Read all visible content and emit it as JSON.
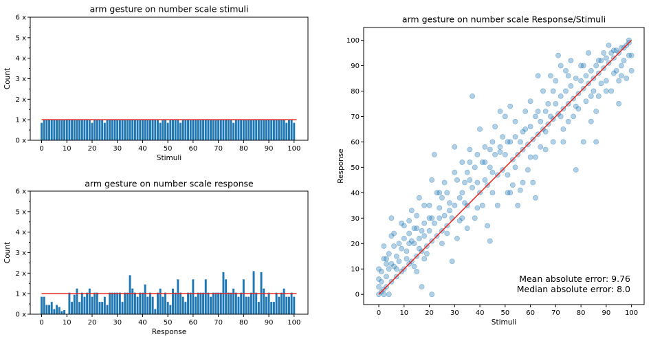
{
  "colors": {
    "bar": "#1f77b4",
    "point": "#1f77b4",
    "reference": "#e8251f"
  },
  "chart_data": [
    {
      "type": "bar",
      "title": "arm gesture on number scale stimuli",
      "xlabel": "Stimuli",
      "ylabel": "Count",
      "xlim": [
        -4.5,
        105.5
      ],
      "ylim": [
        0,
        6
      ],
      "xticks": [
        "0",
        "10",
        "20",
        "30",
        "40",
        "50",
        "60",
        "70",
        "80",
        "90",
        "100"
      ],
      "yticks": [
        "0 x",
        "1 x",
        "2 x",
        "3 x",
        "4 x",
        "5 x",
        "6 x"
      ],
      "reference_line": {
        "y": 1,
        "x": [
          0,
          101
        ]
      },
      "x": [
        0,
        1,
        2,
        3,
        4,
        5,
        6,
        7,
        8,
        9,
        10,
        11,
        12,
        13,
        14,
        15,
        16,
        17,
        18,
        19,
        20,
        21,
        22,
        23,
        24,
        25,
        26,
        27,
        28,
        29,
        30,
        31,
        32,
        33,
        34,
        35,
        36,
        37,
        38,
        39,
        40,
        41,
        42,
        43,
        44,
        45,
        46,
        47,
        48,
        49,
        50,
        51,
        52,
        53,
        54,
        55,
        56,
        57,
        58,
        59,
        60,
        61,
        62,
        63,
        64,
        65,
        66,
        67,
        68,
        69,
        70,
        71,
        72,
        73,
        74,
        75,
        76,
        77,
        78,
        79,
        80,
        81,
        82,
        83,
        84,
        85,
        86,
        87,
        88,
        89,
        90,
        91,
        92,
        93,
        94,
        95,
        96,
        97,
        98,
        99,
        100
      ],
      "values": [
        0.85,
        1,
        1,
        1,
        1,
        1,
        1,
        1,
        1,
        1,
        1,
        1,
        1,
        1,
        1,
        1,
        1,
        1,
        1,
        1,
        0.85,
        1,
        1,
        1,
        1,
        0.85,
        1,
        1,
        1,
        1,
        1,
        1,
        1,
        1,
        1,
        1,
        1,
        1,
        1,
        1,
        1,
        1,
        1,
        1,
        1,
        1,
        1,
        0.85,
        1,
        1,
        0.85,
        1,
        1,
        1,
        1,
        0.85,
        1,
        1,
        1,
        1,
        1,
        1,
        1,
        1,
        1,
        1,
        1,
        1,
        1,
        1,
        1,
        1,
        1,
        1,
        1,
        1,
        0.85,
        1,
        1,
        1,
        1,
        1,
        1,
        1,
        1,
        1,
        1,
        1,
        1,
        1,
        1,
        1,
        1,
        1,
        1,
        1,
        1,
        0.85,
        1,
        1,
        0.85
      ]
    },
    {
      "type": "bar",
      "title": "arm gesture on number scale response",
      "xlabel": "Response",
      "ylabel": "Count",
      "xlim": [
        -4.5,
        105.5
      ],
      "ylim": [
        0,
        6
      ],
      "xticks": [
        "0",
        "10",
        "20",
        "30",
        "40",
        "50",
        "60",
        "70",
        "80",
        "90",
        "100"
      ],
      "yticks": [
        "0 x",
        "1 x",
        "2 x",
        "3 x",
        "4 x",
        "5 x",
        "6 x"
      ],
      "reference_line": {
        "y": 1,
        "x": [
          0,
          101
        ]
      },
      "x": [
        0,
        1,
        2,
        3,
        4,
        5,
        6,
        7,
        8,
        9,
        10,
        11,
        12,
        13,
        14,
        15,
        16,
        17,
        18,
        19,
        20,
        21,
        22,
        23,
        24,
        25,
        26,
        27,
        28,
        29,
        30,
        31,
        32,
        33,
        34,
        35,
        36,
        37,
        38,
        39,
        40,
        41,
        42,
        43,
        44,
        45,
        46,
        47,
        48,
        49,
        50,
        51,
        52,
        53,
        54,
        55,
        56,
        57,
        58,
        59,
        60,
        61,
        62,
        63,
        64,
        65,
        66,
        67,
        68,
        69,
        70,
        71,
        72,
        73,
        74,
        75,
        76,
        77,
        78,
        79,
        80,
        81,
        82,
        83,
        84,
        85,
        86,
        87,
        88,
        89,
        90,
        91,
        92,
        93,
        94,
        95,
        96,
        97,
        98,
        99,
        100
      ],
      "values": [
        0.85,
        0.85,
        0.45,
        0.45,
        0.6,
        0.25,
        0.45,
        0.35,
        0.15,
        0.2,
        0,
        1.05,
        0.6,
        0.95,
        1.25,
        0.6,
        1.05,
        0.85,
        1.05,
        1.25,
        0.85,
        1.05,
        1.05,
        0.6,
        0.6,
        0.85,
        0.45,
        1.05,
        1.05,
        1.05,
        1.05,
        1.05,
        0.6,
        1.05,
        1.05,
        1.9,
        1.25,
        1.05,
        0.85,
        1.05,
        1.05,
        1.45,
        0.85,
        1.05,
        0.85,
        0.25,
        1.05,
        1.25,
        0.85,
        1.05,
        0.6,
        0.45,
        1.25,
        1.05,
        1.7,
        1.05,
        0.85,
        0.6,
        1.05,
        1.05,
        1.7,
        0.85,
        1.05,
        1.05,
        1.05,
        1.7,
        1.05,
        0.85,
        1.05,
        1.05,
        1.05,
        1.05,
        2.05,
        1.7,
        1.05,
        1.05,
        1.25,
        1.05,
        0.85,
        1.05,
        1.7,
        0.85,
        0.85,
        1.05,
        2.1,
        1.05,
        0.6,
        2.05,
        1.25,
        0.85,
        1.05,
        0.6,
        0.6,
        1.05,
        0.85,
        1.05,
        1.25,
        0.85,
        0.85,
        1.05,
        0.85
      ]
    },
    {
      "type": "scatter",
      "title": "arm gesture on number scale Response/Stimuli",
      "xlabel": "Stimuli",
      "ylabel": "Response",
      "xlim": [
        -6,
        105
      ],
      "ylim": [
        -4,
        105
      ],
      "xticks": [
        "0",
        "10",
        "20",
        "30",
        "40",
        "50",
        "60",
        "70",
        "80",
        "90",
        "100"
      ],
      "yticks": [
        "0",
        "10",
        "20",
        "30",
        "40",
        "50",
        "60",
        "70",
        "80",
        "90",
        "100"
      ],
      "reference_line": {
        "x": [
          0,
          100
        ],
        "y": [
          0,
          100
        ]
      },
      "annotations": [
        "Mean absolute error: 9.76",
        "Median absolute error: 8.0"
      ],
      "points": [
        [
          0,
          0
        ],
        [
          0,
          3
        ],
        [
          0,
          6
        ],
        [
          0,
          10
        ],
        [
          1,
          1
        ],
        [
          1,
          5
        ],
        [
          1,
          9
        ],
        [
          2,
          2
        ],
        [
          2,
          0
        ],
        [
          2,
          14
        ],
        [
          2,
          19
        ],
        [
          3,
          3
        ],
        [
          3,
          7
        ],
        [
          3,
          12
        ],
        [
          4,
          0
        ],
        [
          4,
          10
        ],
        [
          4,
          16
        ],
        [
          5,
          5
        ],
        [
          5,
          12
        ],
        [
          5,
          23
        ],
        [
          5,
          30
        ],
        [
          6,
          11
        ],
        [
          6,
          19
        ],
        [
          7,
          7
        ],
        [
          7,
          15
        ],
        [
          8,
          20
        ],
        [
          8,
          13
        ],
        [
          9,
          9
        ],
        [
          9,
          18
        ],
        [
          10,
          10
        ],
        [
          10,
          22
        ],
        [
          10,
          27
        ],
        [
          11,
          17
        ],
        [
          11,
          14
        ],
        [
          12,
          12
        ],
        [
          12,
          24
        ],
        [
          12,
          29
        ],
        [
          13,
          13
        ],
        [
          13,
          21
        ],
        [
          13,
          33
        ],
        [
          14,
          20
        ],
        [
          14,
          26
        ],
        [
          15,
          15
        ],
        [
          15,
          9
        ],
        [
          15,
          31
        ],
        [
          16,
          22
        ],
        [
          16,
          18
        ],
        [
          16,
          38
        ],
        [
          17,
          17
        ],
        [
          17,
          25
        ],
        [
          17,
          3
        ],
        [
          18,
          23
        ],
        [
          18,
          28
        ],
        [
          18,
          35
        ],
        [
          19,
          19
        ],
        [
          19,
          16
        ],
        [
          20,
          25
        ],
        [
          20,
          30
        ],
        [
          20,
          35
        ],
        [
          21,
          21
        ],
        [
          21,
          0
        ],
        [
          21,
          45
        ],
        [
          22,
          28
        ],
        [
          22,
          55
        ],
        [
          23,
          23
        ],
        [
          23,
          40
        ],
        [
          24,
          30
        ],
        [
          24,
          34
        ],
        [
          25,
          25
        ],
        [
          25,
          38
        ],
        [
          26,
          31
        ],
        [
          26,
          44
        ],
        [
          27,
          27
        ],
        [
          27,
          40
        ],
        [
          28,
          33
        ],
        [
          28,
          36
        ],
        [
          29,
          30
        ],
        [
          29,
          13
        ],
        [
          30,
          35
        ],
        [
          30,
          58
        ],
        [
          31,
          22
        ],
        [
          31,
          45
        ],
        [
          32,
          38
        ],
        [
          32,
          29
        ],
        [
          33,
          40
        ],
        [
          33,
          52
        ],
        [
          34,
          44
        ],
        [
          34,
          36
        ],
        [
          35,
          35
        ],
        [
          35,
          48
        ],
        [
          36,
          45
        ],
        [
          36,
          57
        ],
        [
          37,
          42
        ],
        [
          37,
          78
        ],
        [
          38,
          30
        ],
        [
          38,
          50
        ],
        [
          39,
          44
        ],
        [
          39,
          55
        ],
        [
          40,
          40
        ],
        [
          40,
          65
        ],
        [
          41,
          35
        ],
        [
          41,
          52
        ],
        [
          42,
          45
        ],
        [
          42,
          58
        ],
        [
          43,
          43
        ],
        [
          43,
          27
        ],
        [
          44,
          50
        ],
        [
          44,
          21
        ],
        [
          45,
          48
        ],
        [
          45,
          60
        ],
        [
          46,
          55
        ],
        [
          46,
          66
        ],
        [
          47,
          47
        ],
        [
          47,
          35
        ],
        [
          48,
          58
        ],
        [
          48,
          72
        ],
        [
          49,
          49
        ],
        [
          49,
          62
        ],
        [
          50,
          55
        ],
        [
          50,
          70
        ],
        [
          51,
          40
        ],
        [
          51,
          47
        ],
        [
          52,
          60
        ],
        [
          52,
          74
        ],
        [
          53,
          53
        ],
        [
          53,
          43
        ],
        [
          54,
          62
        ],
        [
          54,
          68
        ],
        [
          55,
          55
        ],
        [
          55,
          35
        ],
        [
          56,
          60
        ],
        [
          56,
          41
        ],
        [
          57,
          57
        ],
        [
          57,
          44
        ],
        [
          58,
          65
        ],
        [
          58,
          72
        ],
        [
          59,
          59
        ],
        [
          59,
          49
        ],
        [
          60,
          66
        ],
        [
          60,
          76
        ],
        [
          61,
          61
        ],
        [
          61,
          44
        ],
        [
          62,
          70
        ],
        [
          62,
          38
        ],
        [
          63,
          63
        ],
        [
          63,
          86
        ],
        [
          64,
          68
        ],
        [
          64,
          58
        ],
        [
          65,
          65
        ],
        [
          65,
          80
        ],
        [
          66,
          72
        ],
        [
          66,
          57
        ],
        [
          67,
          67
        ],
        [
          67,
          75
        ],
        [
          68,
          70
        ],
        [
          68,
          86
        ],
        [
          69,
          69
        ],
        [
          69,
          60
        ],
        [
          70,
          75
        ],
        [
          70,
          84
        ],
        [
          71,
          71
        ],
        [
          71,
          94
        ],
        [
          72,
          78
        ],
        [
          72,
          90
        ],
        [
          73,
          73
        ],
        [
          73,
          65
        ],
        [
          74,
          80
        ],
        [
          74,
          88
        ],
        [
          75,
          75
        ],
        [
          75,
          68
        ],
        [
          76,
          82
        ],
        [
          76,
          92
        ],
        [
          77,
          77
        ],
        [
          77,
          70
        ],
        [
          78,
          85
        ],
        [
          78,
          49
        ],
        [
          79,
          79
        ],
        [
          79,
          73
        ],
        [
          80,
          84
        ],
        [
          80,
          90
        ],
        [
          81,
          81
        ],
        [
          81,
          60
        ],
        [
          82,
          86
        ],
        [
          82,
          76
        ],
        [
          83,
          83
        ],
        [
          83,
          95
        ],
        [
          84,
          88
        ],
        [
          84,
          68
        ],
        [
          85,
          85
        ],
        [
          85,
          80
        ],
        [
          86,
          90
        ],
        [
          86,
          60
        ],
        [
          87,
          87
        ],
        [
          87,
          78
        ],
        [
          88,
          92
        ],
        [
          88,
          83
        ],
        [
          89,
          89
        ],
        [
          89,
          95
        ],
        [
          90,
          93
        ],
        [
          90,
          84
        ],
        [
          91,
          91
        ],
        [
          91,
          98
        ],
        [
          92,
          95
        ],
        [
          92,
          80
        ],
        [
          93,
          93
        ],
        [
          93,
          87
        ],
        [
          94,
          96
        ],
        [
          94,
          88
        ],
        [
          95,
          95
        ],
        [
          95,
          75
        ],
        [
          96,
          97
        ],
        [
          96,
          90
        ],
        [
          97,
          97
        ],
        [
          97,
          92
        ],
        [
          98,
          98
        ],
        [
          98,
          85
        ],
        [
          99,
          99
        ],
        [
          99,
          94
        ],
        [
          100,
          94
        ],
        [
          100,
          88
        ],
        [
          3,
          14
        ],
        [
          6,
          24
        ],
        [
          9,
          28
        ],
        [
          12,
          20
        ],
        [
          15,
          26
        ],
        [
          18,
          14
        ],
        [
          21,
          30
        ],
        [
          24,
          40
        ],
        [
          27,
          24
        ],
        [
          30,
          48
        ],
        [
          33,
          30
        ],
        [
          36,
          52
        ],
        [
          39,
          34
        ],
        [
          42,
          52
        ],
        [
          45,
          40
        ],
        [
          48,
          56
        ],
        [
          51,
          60
        ],
        [
          54,
          50
        ],
        [
          57,
          64
        ],
        [
          60,
          54
        ],
        [
          63,
          72
        ],
        [
          66,
          64
        ],
        [
          69,
          80
        ],
        [
          72,
          70
        ],
        [
          75,
          86
        ],
        [
          78,
          74
        ],
        [
          81,
          90
        ],
        [
          84,
          78
        ],
        [
          87,
          92
        ],
        [
          90,
          80
        ],
        [
          93,
          96
        ],
        [
          96,
          86
        ],
        [
          99,
          100
        ],
        [
          7,
          10
        ],
        [
          14,
          11
        ],
        [
          25,
          20
        ],
        [
          35,
          26
        ],
        [
          44,
          57
        ],
        [
          52,
          40
        ],
        [
          62,
          54
        ],
        [
          73,
          60
        ],
        [
          86,
          72
        ],
        [
          95,
          84
        ]
      ]
    }
  ]
}
